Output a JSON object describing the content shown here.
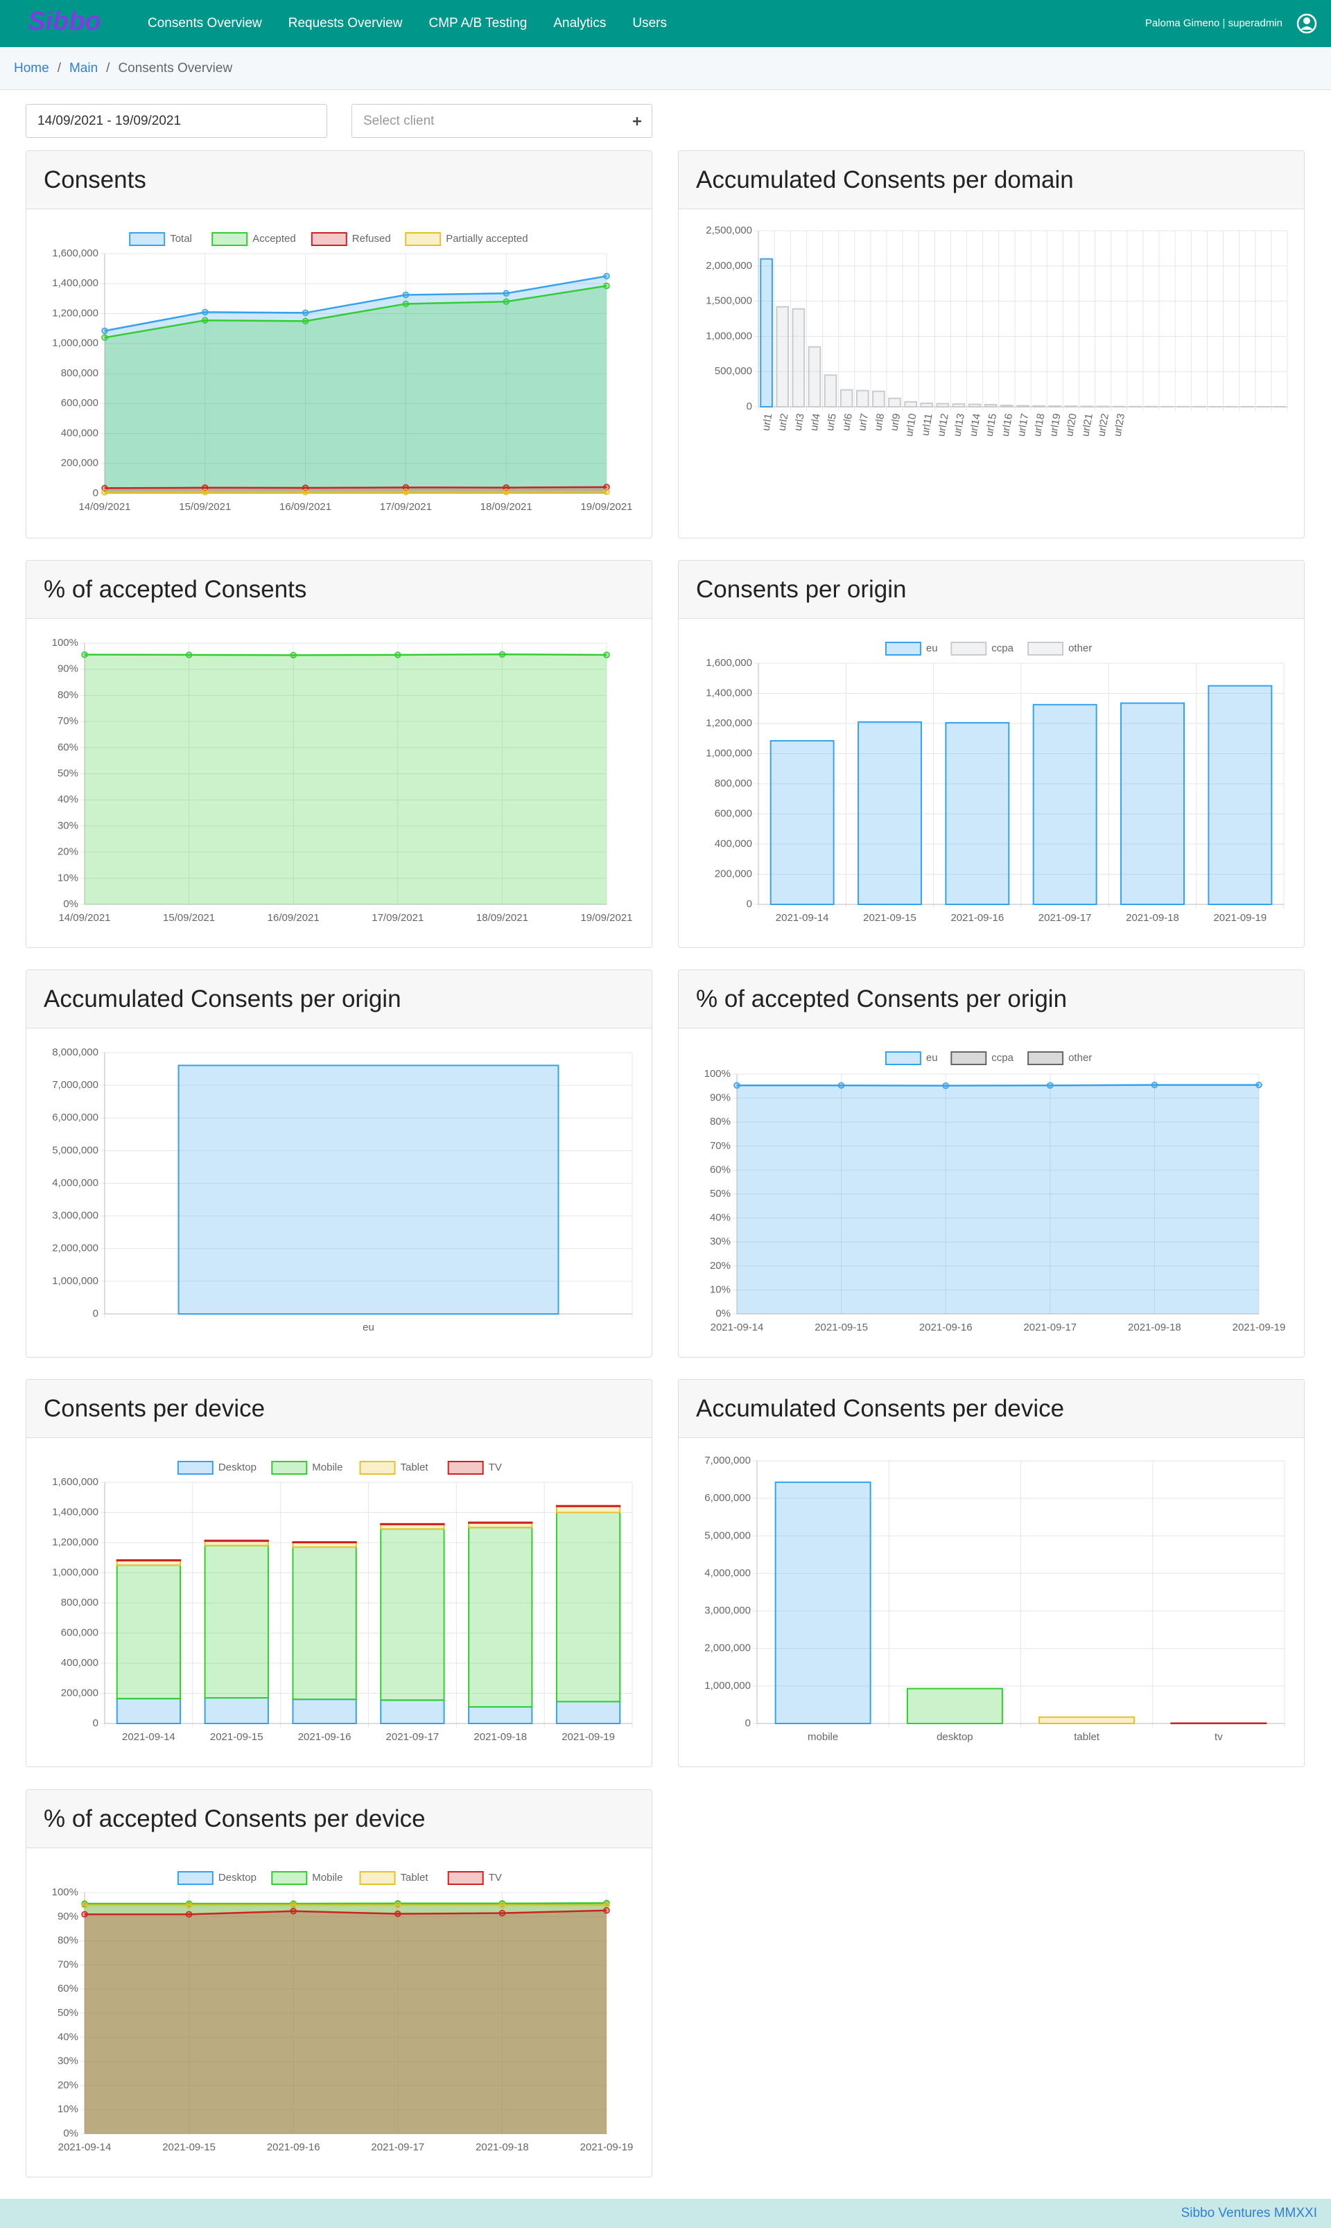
{
  "nav": {
    "logo": "Sibbo",
    "items": [
      "Consents Overview",
      "Requests Overview",
      "CMP A/B Testing",
      "Analytics",
      "Users"
    ],
    "user": "Paloma Gimeno | superadmin"
  },
  "breadcrumb": {
    "items": [
      "Home",
      "Main",
      "Consents Overview"
    ],
    "separator": "/"
  },
  "filters": {
    "date_range": "14/09/2021 - 19/09/2021",
    "client_placeholder": "Select client"
  },
  "chart_data": [
    {
      "type": "line",
      "title": "Consents",
      "fill": true,
      "legend": "top",
      "categories": [
        "14/09/2021",
        "15/09/2021",
        "16/09/2021",
        "17/09/2021",
        "18/09/2021",
        "19/09/2021"
      ],
      "series": [
        {
          "name": "Total",
          "color": "#36a2eb",
          "values": [
            1085000,
            1210000,
            1205000,
            1325000,
            1335000,
            1450000
          ]
        },
        {
          "name": "Accepted",
          "color": "#33cc33",
          "values": [
            1040000,
            1155000,
            1150000,
            1265000,
            1280000,
            1385000
          ]
        },
        {
          "name": "Refused",
          "color": "#cc2222",
          "values": [
            35000,
            38000,
            37000,
            40000,
            39000,
            42000
          ]
        },
        {
          "name": "Partially accepted",
          "color": "#e6c229",
          "values": [
            8000,
            9000,
            9000,
            10000,
            10000,
            11000
          ]
        }
      ],
      "ylim": [
        0,
        1600000
      ],
      "yticks": [
        0,
        {
          "value": 200000,
          "label": "200,000"
        },
        {
          "value": 400000,
          "label": "400,000"
        },
        {
          "value": 600000,
          "label": "600,000"
        },
        {
          "value": 800000,
          "label": "800,000"
        },
        {
          "value": 1000000,
          "label": "1,000,000"
        },
        {
          "value": 1200000,
          "label": "1,200,000"
        },
        {
          "value": 1400000,
          "label": "1,400,000"
        },
        {
          "value": 1600000,
          "label": "1,600,000"
        }
      ]
    },
    {
      "type": "bar",
      "title": "Accumulated Consents per domain",
      "categories": [
        "url1",
        "url2",
        "url3",
        "url4",
        "url5",
        "url6",
        "url7",
        "url8",
        "url9",
        "url10",
        "url11",
        "url12",
        "url13",
        "url14",
        "url15",
        "url16",
        "url17",
        "url18",
        "url19",
        "url20",
        "url21",
        "url22",
        "url23",
        null,
        null,
        null,
        null,
        null,
        null,
        null,
        null,
        null,
        null
      ],
      "values": [
        2100000,
        1420000,
        1390000,
        850000,
        450000,
        240000,
        230000,
        220000,
        120000,
        70000,
        50000,
        45000,
        40000,
        35000,
        30000,
        20000,
        15000,
        12000,
        10000,
        8000,
        6000,
        5000,
        4000,
        3000,
        3000,
        2000,
        2000,
        2000,
        1000,
        1000,
        1000,
        1000,
        1000
      ],
      "colors": [
        "#36a2eb",
        "#c9cbcf",
        "#c9cbcf",
        "#c9cbcf",
        "#c9cbcf",
        "#c9cbcf",
        "#c9cbcf",
        "#c9cbcf",
        "#c9cbcf",
        "#c9cbcf",
        "#c9cbcf",
        "#c9cbcf",
        "#c9cbcf",
        "#c9cbcf",
        "#c9cbcf",
        "#c9cbcf",
        "#c9cbcf",
        "#c9cbcf",
        "#c9cbcf",
        "#c9cbcf",
        "#c9cbcf",
        "#c9cbcf",
        "#c9cbcf",
        "#c9cbcf",
        "#c9cbcf",
        "#c9cbcf",
        "#c9cbcf",
        "#c9cbcf",
        "#c9cbcf",
        "#c9cbcf",
        "#c9cbcf",
        "#c9cbcf",
        "#c9cbcf"
      ],
      "ylim": [
        0,
        2500000
      ],
      "yticks": [
        0,
        {
          "value": 500000,
          "label": "500,000"
        },
        {
          "value": 1000000,
          "label": "1,000,000"
        },
        {
          "value": 1500000,
          "label": "1,500,000"
        },
        {
          "value": 2000000,
          "label": "2,000,000"
        },
        {
          "value": 2500000,
          "label": "2,500,000"
        }
      ]
    },
    {
      "type": "line",
      "title": "% of accepted Consents",
      "fill": true,
      "categories": [
        "14/09/2021",
        "15/09/2021",
        "16/09/2021",
        "17/09/2021",
        "18/09/2021",
        "19/09/2021"
      ],
      "values": [
        95.6,
        95.5,
        95.4,
        95.5,
        95.7,
        95.5
      ],
      "color": "#33cc33",
      "ylim": [
        0,
        100
      ],
      "yticks": [
        {
          "value": 0,
          "label": "0%"
        },
        {
          "value": 10,
          "label": "10%"
        },
        {
          "value": 20,
          "label": "20%"
        },
        {
          "value": 30,
          "label": "30%"
        },
        {
          "value": 40,
          "label": "40%"
        },
        {
          "value": 50,
          "label": "50%"
        },
        {
          "value": 60,
          "label": "60%"
        },
        {
          "value": 70,
          "label": "70%"
        },
        {
          "value": 80,
          "label": "80%"
        },
        {
          "value": 90,
          "label": "90%"
        },
        {
          "value": 100,
          "label": "100%"
        }
      ]
    },
    {
      "type": "bar",
      "title": "Consents per origin",
      "legend": "top",
      "categories": [
        "2021-09-14",
        "2021-09-15",
        "2021-09-16",
        "2021-09-17",
        "2021-09-18",
        "2021-09-19"
      ],
      "series": [
        {
          "name": "eu",
          "color": "#36a2eb",
          "values": [
            1085000,
            1210000,
            1205000,
            1325000,
            1335000,
            1450000
          ]
        },
        {
          "name": "ccpa",
          "color": "#c9cbcf",
          "values": [
            null,
            null,
            null,
            null,
            null,
            null
          ]
        },
        {
          "name": "other",
          "color": "#c9cbcf",
          "values": [
            null,
            null,
            null,
            null,
            null,
            null
          ]
        }
      ],
      "ylim": [
        0,
        1600000
      ],
      "yticks": [
        0,
        {
          "value": 200000,
          "label": "200,000"
        },
        {
          "value": 400000,
          "label": "400,000"
        },
        {
          "value": 600000,
          "label": "600,000"
        },
        {
          "value": 800000,
          "label": "800,000"
        },
        {
          "value": 1000000,
          "label": "1,000,000"
        },
        {
          "value": 1200000,
          "label": "1,200,000"
        },
        {
          "value": 1400000,
          "label": "1,400,000"
        },
        {
          "value": 1600000,
          "label": "1,600,000"
        }
      ]
    },
    {
      "type": "bar",
      "title": "Accumulated Consents per origin",
      "categories": [
        "eu"
      ],
      "values": [
        7610000
      ],
      "color": "#36a2eb",
      "ylim": [
        0,
        8000000
      ],
      "yticks": [
        0,
        {
          "value": 1000000,
          "label": "1,000,000"
        },
        {
          "value": 2000000,
          "label": "2,000,000"
        },
        {
          "value": 3000000,
          "label": "3,000,000"
        },
        {
          "value": 4000000,
          "label": "4,000,000"
        },
        {
          "value": 5000000,
          "label": "5,000,000"
        },
        {
          "value": 6000000,
          "label": "6,000,000"
        },
        {
          "value": 7000000,
          "label": "7,000,000"
        },
        {
          "value": 8000000,
          "label": "8,000,000"
        }
      ]
    },
    {
      "type": "line",
      "title": "% of accepted Consents per origin",
      "fill": true,
      "legend": "top",
      "categories": [
        "2021-09-14",
        "2021-09-15",
        "2021-09-16",
        "2021-09-17",
        "2021-09-18",
        "2021-09-19"
      ],
      "series": [
        {
          "name": "eu",
          "color": "#36a2eb",
          "values": [
            95.3,
            95.3,
            95.2,
            95.3,
            95.5,
            95.5
          ]
        },
        {
          "name": "ccpa",
          "color": "#666666",
          "values": [
            null,
            null,
            null,
            null,
            null,
            null
          ]
        },
        {
          "name": "other",
          "color": "#666666",
          "values": [
            null,
            null,
            null,
            null,
            null,
            null
          ]
        }
      ],
      "ylim": [
        0,
        100
      ],
      "yticks": [
        {
          "value": 0,
          "label": "0%"
        },
        {
          "value": 10,
          "label": "10%"
        },
        {
          "value": 20,
          "label": "20%"
        },
        {
          "value": 30,
          "label": "30%"
        },
        {
          "value": 40,
          "label": "40%"
        },
        {
          "value": 50,
          "label": "50%"
        },
        {
          "value": 60,
          "label": "60%"
        },
        {
          "value": 70,
          "label": "70%"
        },
        {
          "value": 80,
          "label": "80%"
        },
        {
          "value": 90,
          "label": "90%"
        },
        {
          "value": 100,
          "label": "100%"
        }
      ]
    },
    {
      "type": "bar",
      "title": "Consents per device",
      "stacked": true,
      "legend": "top",
      "categories": [
        "2021-09-14",
        "2021-09-15",
        "2021-09-16",
        "2021-09-17",
        "2021-09-18",
        "2021-09-19"
      ],
      "series": [
        {
          "name": "Desktop",
          "color": "#36a2eb",
          "values": [
            165000,
            170000,
            160000,
            155000,
            110000,
            145000
          ]
        },
        {
          "name": "Mobile",
          "color": "#33cc33",
          "values": [
            885000,
            1010000,
            1010000,
            1135000,
            1190000,
            1255000
          ]
        },
        {
          "name": "Tablet",
          "color": "#e6c229",
          "values": [
            30000,
            30000,
            30000,
            30000,
            30000,
            40000
          ]
        },
        {
          "name": "TV",
          "color": "#cc2222",
          "values": [
            5000,
            5000,
            5000,
            5000,
            5000,
            5000
          ]
        }
      ],
      "ylim": [
        0,
        1600000
      ],
      "yticks": [
        0,
        {
          "value": 200000,
          "label": "200,000"
        },
        {
          "value": 400000,
          "label": "400,000"
        },
        {
          "value": 600000,
          "label": "600,000"
        },
        {
          "value": 800000,
          "label": "800,000"
        },
        {
          "value": 1000000,
          "label": "1,000,000"
        },
        {
          "value": 1200000,
          "label": "1,200,000"
        },
        {
          "value": 1400000,
          "label": "1,400,000"
        },
        {
          "value": 1600000,
          "label": "1,600,000"
        }
      ]
    },
    {
      "type": "bar",
      "title": "Accumulated Consents per device",
      "categories": [
        "mobile",
        "desktop",
        "tablet",
        "tv"
      ],
      "values": [
        6430000,
        930000,
        170000,
        10000
      ],
      "colors": [
        "#36a2eb",
        "#33cc33",
        "#e6c229",
        "#cc2222"
      ],
      "ylim": [
        0,
        7000000
      ],
      "yticks": [
        0,
        {
          "value": 1000000,
          "label": "1,000,000"
        },
        {
          "value": 2000000,
          "label": "2,000,000"
        },
        {
          "value": 3000000,
          "label": "3,000,000"
        },
        {
          "value": 4000000,
          "label": "4,000,000"
        },
        {
          "value": 5000000,
          "label": "5,000,000"
        },
        {
          "value": 6000000,
          "label": "6,000,000"
        },
        {
          "value": 7000000,
          "label": "7,000,000"
        }
      ]
    },
    {
      "type": "line",
      "title": "% of accepted Consents per device",
      "fill": true,
      "legend": "top",
      "categories": [
        "2021-09-14",
        "2021-09-15",
        "2021-09-16",
        "2021-09-17",
        "2021-09-18",
        "2021-09-19"
      ],
      "series": [
        {
          "name": "Desktop",
          "color": "#36a2eb",
          "values": [
            95.3,
            95.2,
            95.3,
            95.3,
            95.4,
            95.6
          ]
        },
        {
          "name": "Mobile",
          "color": "#33cc33",
          "values": [
            95.4,
            95.4,
            95.4,
            95.5,
            95.5,
            95.6
          ]
        },
        {
          "name": "Tablet",
          "color": "#e6c229",
          "values": [
            94.8,
            94.8,
            94.8,
            94.8,
            94.8,
            94.8
          ]
        },
        {
          "name": "TV",
          "color": "#cc2222",
          "values": [
            91.0,
            91.0,
            92.3,
            91.2,
            91.5,
            92.6
          ]
        }
      ],
      "ylim": [
        0,
        100
      ],
      "yticks": [
        {
          "value": 0,
          "label": "0%"
        },
        {
          "value": 10,
          "label": "10%"
        },
        {
          "value": 20,
          "label": "20%"
        },
        {
          "value": 30,
          "label": "30%"
        },
        {
          "value": 40,
          "label": "40%"
        },
        {
          "value": 50,
          "label": "50%"
        },
        {
          "value": 60,
          "label": "60%"
        },
        {
          "value": 70,
          "label": "70%"
        },
        {
          "value": 80,
          "label": "80%"
        },
        {
          "value": 90,
          "label": "90%"
        },
        {
          "value": 100,
          "label": "100%"
        }
      ]
    }
  ],
  "footer": "Sibbo Ventures MMXXI"
}
